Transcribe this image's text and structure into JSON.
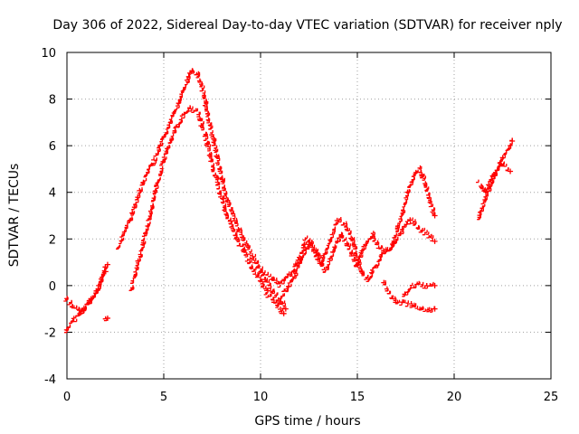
{
  "chart_data": {
    "type": "scatter",
    "title": "Day 306 of 2022, Sidereal Day-to-day VTEC variation (SDTVAR) for receiver nply",
    "xlabel": "GPS time / hours",
    "ylabel": "SDTVAR / TECUs",
    "xlim": [
      0,
      25
    ],
    "ylim": [
      -4,
      10
    ],
    "xticks": [
      0,
      5,
      10,
      15,
      20,
      25
    ],
    "yticks": [
      -4,
      -2,
      0,
      2,
      4,
      6,
      8,
      10
    ],
    "grid": true,
    "marker": "+",
    "color": "#ff0000",
    "series": [
      {
        "name": "SDTVAR",
        "segments": [
          {
            "x": [
              0.0,
              0.3,
              0.6,
              1.0,
              1.4,
              1.8,
              2.1
            ],
            "y": [
              -2.0,
              -1.6,
              -1.3,
              -0.9,
              -0.5,
              0.1,
              0.9
            ]
          },
          {
            "x": [
              0.0,
              0.4,
              0.8,
              1.2,
              1.6,
              2.0
            ],
            "y": [
              -0.6,
              -1.0,
              -1.2,
              -0.8,
              -0.2,
              0.6
            ]
          },
          {
            "x": [
              2.0,
              2.1
            ],
            "y": [
              -1.5,
              -1.4
            ]
          },
          {
            "x": [
              2.7,
              3.0,
              3.4,
              3.8,
              4.2,
              4.6,
              5.0,
              5.4,
              5.8,
              6.2,
              6.5,
              6.8,
              7.1,
              7.4,
              7.8,
              8.2,
              8.6,
              9.0,
              9.4,
              9.8,
              10.2,
              10.6,
              11.0,
              11.3
            ],
            "y": [
              1.6,
              2.2,
              3.0,
              4.0,
              4.8,
              5.4,
              6.2,
              7.0,
              7.8,
              8.6,
              9.2,
              9.0,
              8.2,
              7.0,
              5.5,
              4.0,
              3.0,
              2.2,
              1.6,
              1.0,
              0.4,
              -0.2,
              -0.6,
              -1.0
            ]
          },
          {
            "x": [
              3.4,
              3.6,
              3.9,
              4.2,
              4.5,
              4.8,
              5.2,
              5.6,
              6.0,
              6.4,
              6.8,
              7.2,
              7.6,
              8.0,
              8.4,
              8.8,
              9.2,
              9.6,
              10.0,
              10.4,
              10.8,
              11.2
            ],
            "y": [
              -0.2,
              0.6,
              1.5,
              2.5,
              3.6,
              4.6,
              5.8,
              6.6,
              7.2,
              7.6,
              7.4,
              6.4,
              5.0,
              3.8,
              2.8,
              2.0,
              1.4,
              0.8,
              0.2,
              -0.4,
              -0.8,
              -1.2
            ]
          },
          {
            "x": [
              11.0,
              11.4,
              11.8,
              12.2,
              12.6,
              13.0,
              13.4,
              13.8,
              14.2,
              14.6,
              15.0,
              15.4,
              15.8,
              16.2,
              16.6,
              17.0,
              17.4,
              17.8,
              18.2,
              18.6,
              19.0
            ],
            "y": [
              -0.6,
              -0.2,
              0.4,
              1.2,
              1.8,
              1.2,
              0.6,
              1.4,
              2.2,
              1.6,
              0.8,
              1.6,
              2.2,
              1.6,
              1.4,
              1.8,
              2.4,
              2.8,
              2.4,
              2.2,
              1.9
            ]
          },
          {
            "x": [
              10.0,
              10.5,
              11.0,
              11.5,
              12.0,
              12.4,
              12.8,
              13.2,
              13.6,
              14.0,
              14.4,
              14.8,
              15.2,
              15.6,
              16.0,
              16.4,
              16.8,
              17.2,
              17.6,
              18.0,
              18.3,
              18.6,
              19.0
            ],
            "y": [
              0.6,
              0.4,
              0.0,
              0.4,
              1.0,
              2.0,
              1.6,
              1.0,
              1.8,
              2.8,
              2.6,
              2.0,
              0.6,
              0.2,
              0.8,
              1.4,
              1.6,
              2.6,
              3.8,
              4.8,
              5.0,
              4.2,
              3.0
            ]
          },
          {
            "x": [
              16.4,
              16.8,
              17.2,
              17.6,
              18.0,
              18.4,
              18.8,
              19.0
            ],
            "y": [
              0.1,
              -0.5,
              -0.8,
              -0.8,
              -0.9,
              -1.0,
              -1.1,
              -1.0
            ]
          },
          {
            "x": [
              17.4,
              17.8,
              18.2,
              18.6,
              19.0
            ],
            "y": [
              -0.5,
              -0.1,
              0.0,
              -0.1,
              0.0
            ]
          },
          {
            "x": [
              21.3,
              21.6,
              21.9,
              22.2,
              22.5,
              22.8,
              23.0
            ],
            "y": [
              2.8,
              3.6,
              4.2,
              4.8,
              5.4,
              5.8,
              6.2
            ]
          },
          {
            "x": [
              21.3,
              21.7,
              22.1,
              22.5,
              22.9
            ],
            "y": [
              4.4,
              4.0,
              4.8,
              5.2,
              4.9
            ]
          }
        ]
      }
    ]
  }
}
